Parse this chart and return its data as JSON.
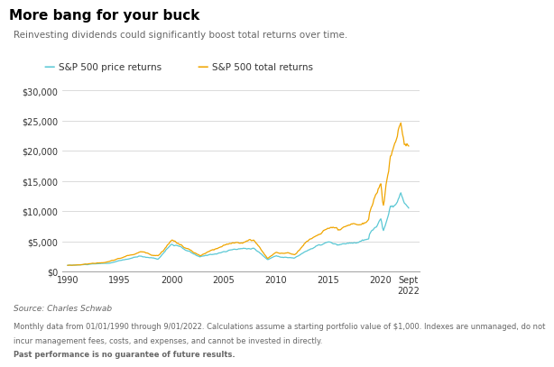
{
  "title": "More bang for your buck",
  "subtitle": "Reinvesting dividends could significantly boost total returns over time.",
  "source": "Source: Charles Schwab",
  "footnote_plain": "Monthly data from 01/01/1990 through 9/01/2022. Calculations assume a starting portfolio value of $1,000. Indexes are unmanaged, do not incur management fees, costs, and expenses, and cannot be invested in directly. ",
  "footnote_bold": "Past performance is no guarantee of future results.",
  "legend_price": "S&P 500 price returns",
  "legend_total": "S&P 500 total returns",
  "price_color": "#5bc8d5",
  "total_color": "#f0a500",
  "background_color": "#ffffff",
  "grid_color": "#cccccc",
  "text_color": "#333333",
  "light_text_color": "#666666",
  "ylim": [
    0,
    30000
  ],
  "yticks": [
    0,
    5000,
    10000,
    15000,
    20000,
    25000,
    30000
  ],
  "ytick_labels": [
    "$0",
    "$5,000",
    "$10,000",
    "$15,000",
    "$20,000",
    "$25,000",
    "$30,000"
  ],
  "xticks": [
    1990,
    1995,
    2000,
    2005,
    2010,
    2015,
    2020
  ],
  "x_last_label": "Sept\n2022",
  "title_fontsize": 11,
  "subtitle_fontsize": 7.5,
  "axis_fontsize": 7,
  "legend_fontsize": 7.5,
  "source_fontsize": 6.5,
  "footnote_fontsize": 6.0,
  "price_waypoints_x": [
    1990,
    1991,
    1994,
    1997,
    1998.7,
    2000,
    2002.7,
    2004,
    2006,
    2007.9,
    2009.2,
    2010,
    2011.8,
    2013,
    2015,
    2016,
    2018.9,
    2019,
    2020.1,
    2020.3,
    2021.0,
    2021.5,
    2022.0,
    2022.3,
    2022.75
  ],
  "price_waypoints_y": [
    1000,
    1050,
    1350,
    2500,
    2100,
    4600,
    2300,
    2900,
    3600,
    3900,
    1950,
    2600,
    2200,
    3500,
    4800,
    4200,
    5200,
    6000,
    8600,
    6400,
    10500,
    11000,
    13200,
    11500,
    10500
  ],
  "total_waypoints_x": [
    1990,
    1991,
    1994,
    1997,
    1998.7,
    2000,
    2002.7,
    2004,
    2006,
    2007.9,
    2009.2,
    2010,
    2011.8,
    2013,
    2015,
    2016,
    2018.9,
    2019,
    2020.1,
    2020.3,
    2021.0,
    2021.5,
    2022.0,
    2022.3,
    2022.75
  ],
  "total_waypoints_y": [
    1000,
    1080,
    1600,
    3200,
    2700,
    5200,
    2500,
    3500,
    4700,
    5200,
    2200,
    3200,
    2800,
    5000,
    7200,
    6500,
    8200,
    9800,
    14800,
    10800,
    19500,
    21000,
    25600,
    22000,
    20500
  ]
}
